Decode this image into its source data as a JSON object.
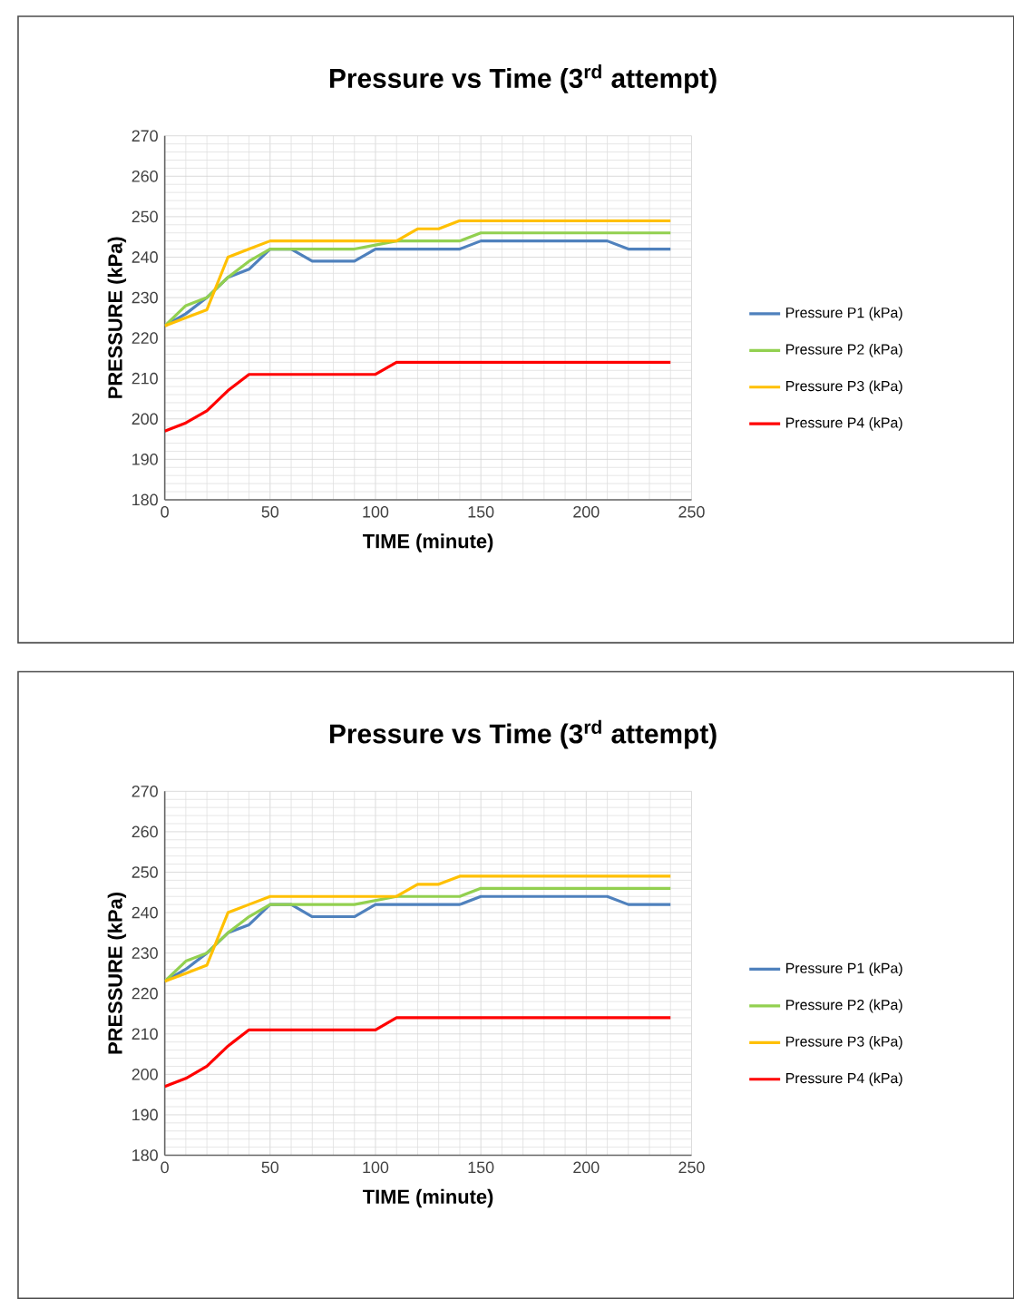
{
  "chart_data": [
    {
      "type": "line",
      "title": "Pressure vs Time (3$^{rd}$ attempt)",
      "xlabel": "TIME (minute)",
      "ylabel": "PRESSURE (kPa)",
      "x": [
        0,
        10,
        20,
        30,
        40,
        50,
        60,
        70,
        80,
        90,
        100,
        110,
        120,
        130,
        140,
        150,
        160,
        170,
        180,
        190,
        200,
        210,
        220,
        230,
        240
      ],
      "series": [
        {
          "name": "Pressure P1 (kPa)",
          "color": "#4f81bd",
          "values": [
            223,
            226,
            230,
            235,
            237,
            242,
            242,
            239,
            239,
            239,
            242,
            242,
            242,
            242,
            242,
            244,
            244,
            244,
            244,
            244,
            244,
            244,
            242,
            242,
            242
          ]
        },
        {
          "name": "Pressure P2 (kPa)",
          "color": "#92d050",
          "values": [
            223,
            228,
            230,
            235,
            239,
            242,
            242,
            242,
            242,
            242,
            243,
            244,
            244,
            244,
            244,
            246,
            246,
            246,
            246,
            246,
            246,
            246,
            246,
            246,
            246
          ]
        },
        {
          "name": "Pressure P3 (kPa)",
          "color": "#ffc000",
          "values": [
            223,
            225,
            227,
            240,
            242,
            244,
            244,
            244,
            244,
            244,
            244,
            244,
            247,
            247,
            249,
            249,
            249,
            249,
            249,
            249,
            249,
            249,
            249,
            249,
            249
          ]
        },
        {
          "name": "Pressure P4 (kPa)",
          "color": "#ff0000",
          "values": [
            197,
            199,
            202,
            207,
            211,
            211,
            211,
            211,
            211,
            211,
            211,
            214,
            214,
            214,
            214,
            214,
            214,
            214,
            214,
            214,
            214,
            214,
            214,
            214,
            214
          ]
        }
      ],
      "xlim": [
        0,
        250
      ],
      "ylim": [
        180,
        270
      ],
      "xticks": [
        0,
        50,
        100,
        150,
        200,
        250
      ],
      "yticks": [
        180,
        190,
        200,
        210,
        220,
        230,
        240,
        250,
        260,
        270
      ],
      "grid": true,
      "legend": "right",
      "marker": "none",
      "line_style": "solid"
    },
    {
      "type": "line",
      "title": "Pressure vs Time (3$^{rd}$ attempt)",
      "xlabel": "TIME (minute)",
      "ylabel": "PRESSURE (kPa)",
      "x": [
        0,
        10,
        20,
        30,
        40,
        50,
        60,
        70,
        80,
        90,
        100,
        110,
        120,
        130,
        140,
        150,
        160,
        170,
        180,
        190,
        200,
        210,
        220,
        230,
        240
      ],
      "series": [
        {
          "name": "Pressure P1 (kPa)",
          "color": "#4f81bd",
          "values": [
            223,
            226,
            230,
            235,
            237,
            242,
            242,
            239,
            239,
            239,
            242,
            242,
            242,
            242,
            242,
            244,
            244,
            244,
            244,
            244,
            244,
            244,
            242,
            242,
            242
          ]
        },
        {
          "name": "Pressure P2 (kPa)",
          "color": "#92d050",
          "values": [
            223,
            228,
            230,
            235,
            239,
            242,
            242,
            242,
            242,
            242,
            243,
            244,
            244,
            244,
            244,
            246,
            246,
            246,
            246,
            246,
            246,
            246,
            246,
            246,
            246
          ]
        },
        {
          "name": "Pressure P3 (kPa)",
          "color": "#ffc000",
          "values": [
            223,
            225,
            227,
            240,
            242,
            244,
            244,
            244,
            244,
            244,
            244,
            244,
            247,
            247,
            249,
            249,
            249,
            249,
            249,
            249,
            249,
            249,
            249,
            249,
            249
          ]
        },
        {
          "name": "Pressure P4 (kPa)",
          "color": "#ff0000",
          "values": [
            197,
            199,
            202,
            207,
            211,
            211,
            211,
            211,
            211,
            211,
            211,
            214,
            214,
            214,
            214,
            214,
            214,
            214,
            214,
            214,
            214,
            214,
            214,
            214,
            214
          ]
        }
      ],
      "xlim": [
        0,
        250
      ],
      "ylim": [
        180,
        270
      ],
      "xticks": [
        0,
        50,
        100,
        150,
        200,
        250
      ],
      "yticks": [
        180,
        190,
        200,
        210,
        220,
        230,
        240,
        250,
        260,
        270
      ],
      "grid": true,
      "legend": "right",
      "marker": "none",
      "line_style": "solid"
    }
  ]
}
